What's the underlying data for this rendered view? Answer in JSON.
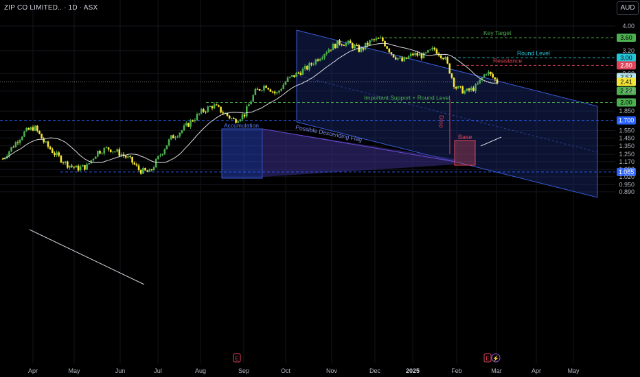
{
  "header": {
    "title": "ZIP CO LIMITED.. · 1D · ASX",
    "currency": "AUD"
  },
  "colors": {
    "background": "#000000",
    "candle_up": "#4caf50",
    "candle_down": "#f5e537",
    "ma_line": "#ffffff",
    "channel_fill": "#1a2a6e",
    "channel_stroke": "#3a5bd9",
    "support_green": "#4caf50",
    "resistance_red": "#e0445a",
    "level_blue": "#2962ff",
    "level_cyan": "#26c6da"
  },
  "chart_data": {
    "type": "candlestick",
    "title": "ZIP CO LIMITED.. · 1D · ASX",
    "y_scale": "log",
    "ylim": [
      0.86,
      4.25
    ],
    "x_tick_labels": [
      "Apr",
      "May",
      "Jun",
      "Jul",
      "Aug",
      "Sep",
      "Oct",
      "Nov",
      "Dec",
      "2025",
      "Feb",
      "Mar",
      "Apr",
      "May"
    ],
    "y_tick_labels": [
      "4.00",
      "3.20",
      "2.60",
      "2.22",
      "1.850",
      "1.550",
      "1.450",
      "1.350",
      "1.250",
      "1.170",
      "1.090",
      "1.020",
      "0.950",
      "0.890"
    ],
    "price_levels": [
      {
        "value": 3.6,
        "label": "3.60",
        "note": "Key Target",
        "kind": "green"
      },
      {
        "value": 3.0,
        "label": "3.00",
        "note": "Round Level",
        "kind": "cyan"
      },
      {
        "value": 2.8,
        "label": "2.80",
        "note": "Resistance",
        "kind": "red"
      },
      {
        "value": 2.52,
        "label": "2.52",
        "note": "",
        "kind": "cyanlabel"
      },
      {
        "value": 2.41,
        "label": "2.41",
        "note": "",
        "kind": "greenlabel"
      },
      {
        "value": 2.41,
        "label": "2.41",
        "note": "",
        "kind": "current"
      },
      {
        "value": 2.22,
        "label": "2.22",
        "note": "",
        "kind": "greenlabel"
      },
      {
        "value": 2.0,
        "label": "2.00",
        "note": "Important Support + Round Level",
        "kind": "green"
      },
      {
        "value": 1.7,
        "label": "1.700",
        "note": "",
        "kind": "blue"
      },
      {
        "value": 1.065,
        "label": "1.065",
        "note": "",
        "kind": "blue"
      }
    ],
    "annotations": [
      "Accumulation",
      "Possible Descending Flag",
      "Drop",
      "Base"
    ],
    "events": [
      "E",
      "E",
      "⚡"
    ],
    "closes": [
      1.2,
      1.35,
      1.52,
      1.6,
      1.38,
      1.25,
      1.15,
      1.1,
      1.12,
      1.28,
      1.32,
      1.27,
      1.2,
      1.08,
      1.06,
      1.25,
      1.45,
      1.55,
      1.7,
      1.85,
      1.95,
      1.82,
      1.7,
      1.8,
      2.2,
      2.35,
      2.15,
      2.45,
      2.6,
      2.75,
      3.0,
      3.25,
      3.45,
      3.4,
      3.2,
      3.5,
      3.55,
      3.1,
      2.9,
      3.1,
      3.05,
      3.25,
      3.0,
      2.3,
      2.2,
      2.3,
      2.65,
      2.41
    ]
  }
}
